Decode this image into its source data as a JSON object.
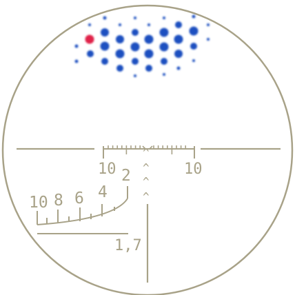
{
  "scope": {
    "line_color": "#a8a288",
    "dot_color": "#1f4fc0",
    "marker_dot_color": "#e0204a"
  },
  "labels": {
    "wind_left": "10",
    "wind_right": "10",
    "range_10": "10",
    "range_8": "8",
    "range_6": "6",
    "range_4": "4",
    "range_2": "2",
    "magnification": "1,7"
  },
  "chevrons": [
    "^",
    "^",
    "^",
    "^"
  ]
}
